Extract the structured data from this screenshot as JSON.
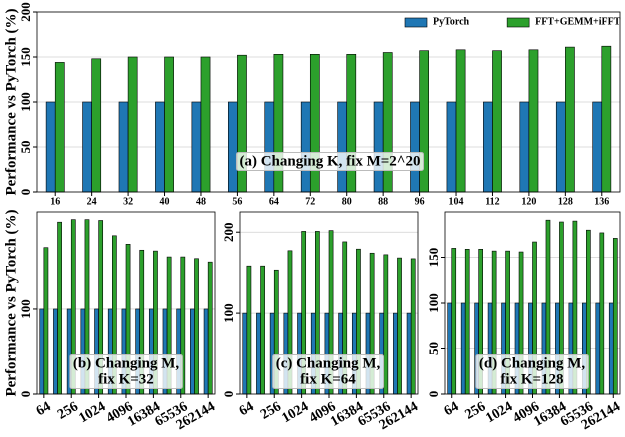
{
  "chart_data": [
    {
      "type": "bar",
      "ylabel": "Performance vs PyTorch (%)",
      "annotation": [
        "(a) Changing K, fix M=2^20"
      ],
      "categories": [
        16,
        24,
        32,
        40,
        48,
        56,
        64,
        72,
        80,
        88,
        96,
        104,
        112,
        120,
        128,
        136
      ],
      "series": [
        {
          "name": "PyTorch",
          "color": "#1f77b4",
          "values": [
            100,
            100,
            100,
            100,
            100,
            100,
            100,
            100,
            100,
            100,
            100,
            100,
            100,
            100,
            100,
            100
          ]
        },
        {
          "name": "FFT+GEMM+iFFT",
          "color": "#2ca02c",
          "values": [
            144,
            148,
            150,
            150,
            150,
            152,
            153,
            153,
            153,
            155,
            157,
            158,
            157,
            158,
            161,
            162
          ]
        }
      ],
      "ylim": [
        0,
        200
      ],
      "yticks": [
        0,
        50,
        100,
        150,
        200
      ],
      "grid": true,
      "legend": "upper right"
    },
    {
      "type": "bar",
      "ylabel": "Performance vs PyTorch (%)",
      "annotation": [
        "(b) Changing M,",
        "fix K=32"
      ],
      "categories": [
        64,
        null,
        256,
        null,
        1024,
        null,
        4096,
        null,
        16384,
        null,
        65536,
        null,
        262144
      ],
      "series": [
        {
          "color": "#1f77b4",
          "values": [
            100,
            100,
            100,
            100,
            100,
            100,
            100,
            100,
            100,
            100,
            100,
            100,
            100
          ]
        },
        {
          "color": "#2ca02c",
          "values": [
            172,
            202,
            205,
            205,
            204,
            186,
            176,
            169,
            168,
            161,
            161,
            159,
            155
          ]
        }
      ],
      "ylim": [
        0,
        214
      ],
      "yticks": [
        0,
        100
      ],
      "grid": true
    },
    {
      "type": "bar",
      "annotation": [
        "(c) Changing M,",
        "fix K=64"
      ],
      "categories": [
        64,
        null,
        256,
        null,
        1024,
        null,
        4096,
        null,
        16384,
        null,
        65536,
        null,
        262144
      ],
      "series": [
        {
          "color": "#1f77b4",
          "values": [
            100,
            100,
            100,
            100,
            100,
            100,
            100,
            100,
            100,
            100,
            100,
            100,
            100
          ]
        },
        {
          "color": "#2ca02c",
          "values": [
            158,
            158,
            153,
            177,
            201,
            201,
            202,
            188,
            179,
            174,
            172,
            168,
            167
          ]
        }
      ],
      "ylim": [
        0,
        225
      ],
      "yticks": [
        0,
        100,
        200
      ],
      "grid": true
    },
    {
      "type": "bar",
      "annotation": [
        "(d) Changing M,",
        "fix K=128"
      ],
      "categories": [
        64,
        null,
        256,
        null,
        1024,
        null,
        4096,
        null,
        16384,
        null,
        65536,
        null,
        262144
      ],
      "series": [
        {
          "color": "#1f77b4",
          "values": [
            100,
            100,
            100,
            100,
            100,
            100,
            100,
            100,
            100,
            100,
            100,
            100,
            100
          ]
        },
        {
          "color": "#2ca02c",
          "values": [
            160,
            159,
            159,
            157,
            157,
            156,
            167,
            191,
            189,
            190,
            180,
            177,
            171
          ]
        }
      ],
      "ylim": [
        0,
        200
      ],
      "yticks": [
        0,
        50,
        100,
        150
      ],
      "grid": true
    }
  ]
}
